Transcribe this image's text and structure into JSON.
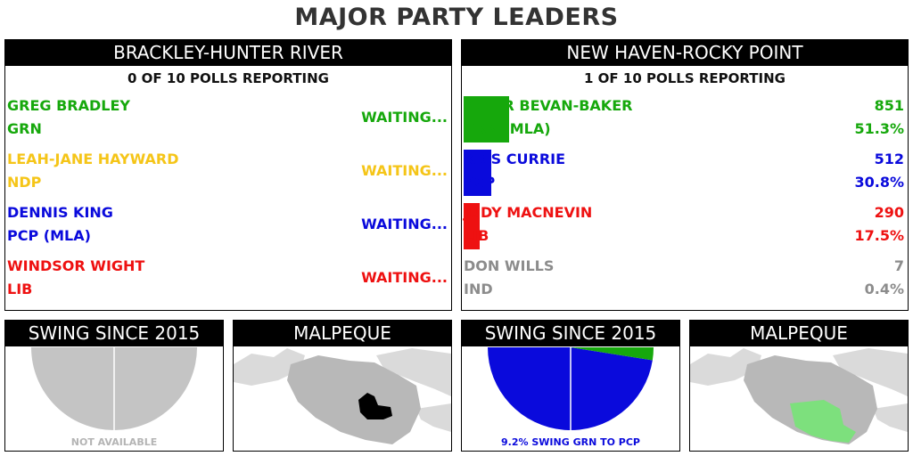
{
  "title": "MAJOR PARTY LEADERS",
  "colors": {
    "grn": "#16a80c",
    "ndp": "#f5c518",
    "pcp": "#0a0adc",
    "lib": "#ee1111",
    "ind": "#8c8c8c",
    "map_land": "#dadada",
    "map_region": "#b8b8b8"
  },
  "left": {
    "header": "BRACKLEY-HUNTER RIVER",
    "polls": "0 OF 10 POLLS REPORTING",
    "candidates": [
      {
        "name": "GREG BRADLEY",
        "party": "GRN",
        "status": "WAITING...",
        "color": "#16a80c"
      },
      {
        "name": "LEAH-JANE HAYWARD",
        "party": "NDP",
        "status": "WAITING...",
        "color": "#f5c518"
      },
      {
        "name": "DENNIS KING",
        "party": "PCP (MLA)",
        "status": "WAITING...",
        "color": "#0a0adc"
      },
      {
        "name": "WINDSOR WIGHT",
        "party": "LIB",
        "status": "WAITING...",
        "color": "#ee1111"
      }
    ],
    "swing": {
      "header": "SWING SINCE 2015",
      "note": "NOT AVAILABLE",
      "note_color": "#b4b4b4"
    },
    "map": {
      "header": "MALPEQUE",
      "highlight_color": "#000000"
    }
  },
  "right": {
    "header": "NEW HAVEN-ROCKY POINT",
    "polls": "1 OF 10 POLLS REPORTING",
    "candidates": [
      {
        "name": "PETER BEVAN-BAKER",
        "party": "GRN (MLA)",
        "votes": "851",
        "pct": "51.3%",
        "share": 0.513,
        "color": "#16a80c"
      },
      {
        "name": "KRIS CURRIE",
        "party": "PCP",
        "votes": "512",
        "pct": "30.8%",
        "share": 0.308,
        "color": "#0a0adc"
      },
      {
        "name": "JUDY MACNEVIN",
        "party": "LIB",
        "votes": "290",
        "pct": "17.5%",
        "share": 0.175,
        "color": "#ee1111"
      },
      {
        "name": "DON WILLS",
        "party": "IND",
        "votes": "7",
        "pct": "0.4%",
        "share": 0.004,
        "color": "#8c8c8c"
      }
    ],
    "swing": {
      "header": "SWING SINCE 2015",
      "note": "9.2% SWING GRN TO PCP",
      "note_color": "#0a0adc",
      "grn_share": 0.05,
      "pcp_share": 0.95
    },
    "map": {
      "header": "MALPEQUE",
      "highlight_color": "#7de07d"
    }
  }
}
